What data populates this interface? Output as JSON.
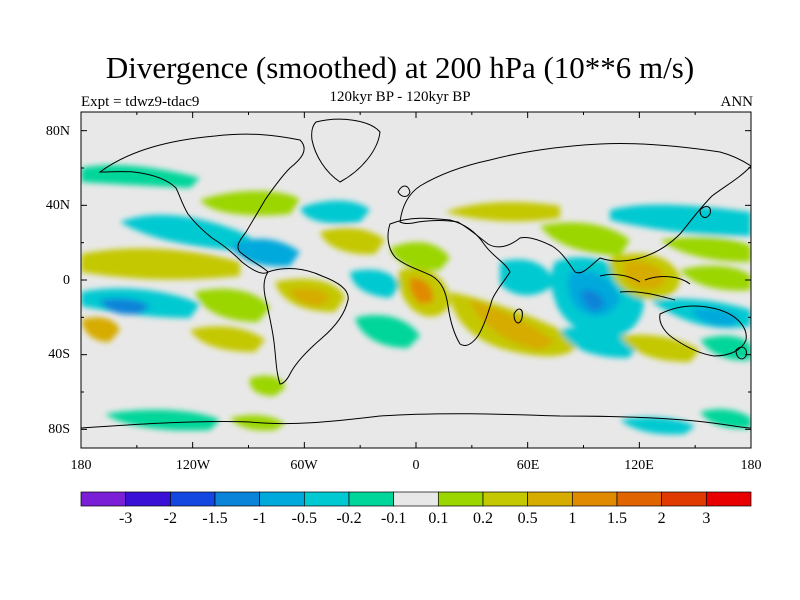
{
  "title": "Divergence (smoothed) at 200 hPa (10**6 m/s)",
  "subtitle": "120kyr BP - 120kyr BP",
  "left_label": "Expt = tdwz9-tdac9",
  "right_label": "ANN",
  "lat_ticks": [
    "80N",
    "40N",
    "0",
    "40S",
    "80S"
  ],
  "lon_ticks": [
    "180",
    "120W",
    "60W",
    "0",
    "60E",
    "120E",
    "180"
  ],
  "colorbar": {
    "colors": [
      "#7a1fd6",
      "#3a10d6",
      "#1447e0",
      "#0a84d8",
      "#00a9db",
      "#00c9d1",
      "#00d69a",
      "#e8e8e8",
      "#9bd600",
      "#c4c800",
      "#d6ac00",
      "#e08a00",
      "#e06400",
      "#e03a00",
      "#e80000"
    ],
    "labels": [
      "-3",
      "-2",
      "-1.5",
      "-1",
      "-0.5",
      "-0.2",
      "-0.1",
      "0.1",
      "0.2",
      "0.5",
      "1",
      "1.5",
      "2",
      "3"
    ]
  },
  "map": {
    "background": "#e8e8e8",
    "lon_range": [
      -180,
      180
    ],
    "lat_range": [
      -90,
      90
    ]
  }
}
